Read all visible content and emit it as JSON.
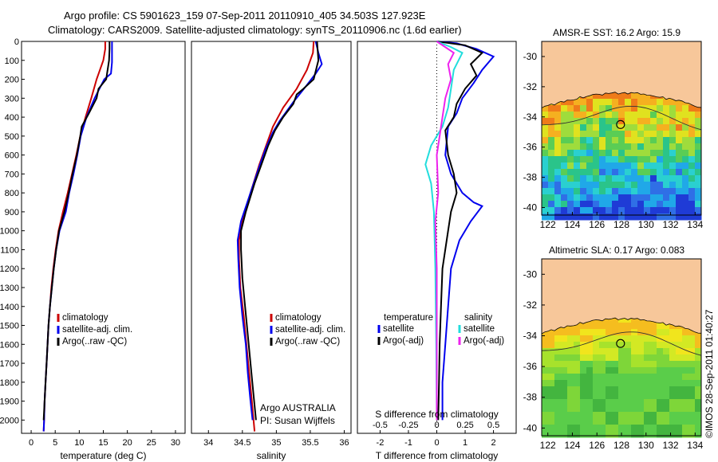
{
  "header": {
    "title_line1": "Argo profile: CS 5901623_159 07-Sep-2011 20110910_405 34.503S 127.923E",
    "title_line2": "Climatology: CARS2009. Satellite-adjusted climatology: synTS_20110906.nc (1.6d earlier)"
  },
  "annotations": {
    "argo_text": "Argo AUSTRALIA",
    "pi_text": "PI: Susan Wijffels",
    "copyright": "©IMOS 28-Sep-2011 01:40:27"
  },
  "colors": {
    "climatology": "#cc0000",
    "satellite": "#0000ee",
    "argo": "#000000",
    "sal_satellite": "#22dddd",
    "sal_argo": "#ee22ee",
    "land": "#f7c79a",
    "contour": "#333333"
  },
  "chart_data": [
    {
      "type": "line",
      "name": "temperature-profile",
      "xlabel": "temperature (deg C)",
      "ylabel": "",
      "xlim": [
        -2,
        32
      ],
      "ylim": [
        2070,
        0
      ],
      "xticks": [
        0,
        5,
        10,
        15,
        20,
        25,
        30
      ],
      "yticks": [
        0,
        100,
        200,
        300,
        400,
        500,
        600,
        700,
        800,
        900,
        1000,
        1100,
        1200,
        1300,
        1400,
        1500,
        1600,
        1700,
        1800,
        1900,
        2000
      ],
      "legend": [
        "climatology",
        "satellite-adj. clim.",
        "Argo(..raw -QC)"
      ],
      "series": [
        {
          "name": "climatology",
          "points": [
            [
              15.4,
              0
            ],
            [
              15.4,
              40
            ],
            [
              15.0,
              100
            ],
            [
              14.3,
              150
            ],
            [
              13.6,
              200
            ],
            [
              12.5,
              300
            ],
            [
              11.3,
              400
            ],
            [
              10.2,
              500
            ],
            [
              9.4,
              600
            ],
            [
              8.5,
              700
            ],
            [
              7.6,
              800
            ],
            [
              6.6,
              900
            ],
            [
              5.7,
              1000
            ],
            [
              5.1,
              1100
            ],
            [
              4.6,
              1200
            ],
            [
              4.2,
              1300
            ],
            [
              3.9,
              1400
            ],
            [
              3.6,
              1500
            ],
            [
              3.4,
              1600
            ],
            [
              3.2,
              1700
            ],
            [
              3.0,
              1800
            ],
            [
              2.8,
              1900
            ],
            [
              2.7,
              2000
            ],
            [
              2.6,
              2060
            ]
          ]
        },
        {
          "name": "satellite-adj. clim.",
          "points": [
            [
              16.8,
              0
            ],
            [
              16.8,
              60
            ],
            [
              16.8,
              110
            ],
            [
              16.6,
              170
            ],
            [
              15.2,
              200
            ],
            [
              13.2,
              300
            ],
            [
              11.5,
              400
            ],
            [
              10.3,
              500
            ],
            [
              9.6,
              600
            ],
            [
              8.8,
              700
            ],
            [
              7.9,
              800
            ],
            [
              7.2,
              900
            ],
            [
              5.9,
              1000
            ],
            [
              5.2,
              1100
            ],
            [
              4.7,
              1200
            ],
            [
              4.3,
              1300
            ],
            [
              3.9,
              1400
            ],
            [
              3.6,
              1500
            ],
            [
              3.4,
              1600
            ],
            [
              3.2,
              1700
            ],
            [
              3.0,
              1800
            ],
            [
              2.8,
              1900
            ],
            [
              2.7,
              2000
            ],
            [
              2.6,
              2060
            ]
          ]
        },
        {
          "name": "Argo(..raw -QC)",
          "points": [
            [
              16.3,
              0
            ],
            [
              16.3,
              40
            ],
            [
              16.2,
              100
            ],
            [
              15.6,
              200
            ],
            [
              14.0,
              250
            ],
            [
              13.6,
              300
            ],
            [
              12.0,
              380
            ],
            [
              10.5,
              450
            ],
            [
              10.2,
              500
            ],
            [
              9.5,
              600
            ],
            [
              8.6,
              700
            ],
            [
              7.8,
              800
            ],
            [
              6.9,
              900
            ],
            [
              5.8,
              1000
            ],
            [
              5.2,
              1100
            ],
            [
              4.7,
              1200
            ],
            [
              4.3,
              1300
            ],
            [
              3.9,
              1400
            ],
            [
              3.6,
              1500
            ],
            [
              3.4,
              1600
            ],
            [
              3.2,
              1700
            ],
            [
              3.0,
              1800
            ],
            [
              2.8,
              1900
            ],
            [
              2.6,
              2000
            ]
          ]
        }
      ]
    },
    {
      "type": "line",
      "name": "salinity-profile",
      "xlabel": "salinity",
      "ylabel": "",
      "xlim": [
        33.75,
        36.1
      ],
      "ylim": [
        2070,
        0
      ],
      "xticks": [
        34,
        34.5,
        35,
        35.5,
        36
      ],
      "yticks": [
        0,
        100,
        200,
        300,
        400,
        500,
        600,
        700,
        800,
        900,
        1000,
        1100,
        1200,
        1300,
        1400,
        1500,
        1600,
        1700,
        1800,
        1900,
        2000
      ],
      "legend": [
        "climatology",
        "satellite-adj. clim.",
        "Argo(..raw -QC)"
      ],
      "series": [
        {
          "name": "climatology",
          "points": [
            [
              35.55,
              0
            ],
            [
              35.54,
              60
            ],
            [
              35.45,
              150
            ],
            [
              35.3,
              250
            ],
            [
              35.1,
              350
            ],
            [
              34.95,
              450
            ],
            [
              34.85,
              550
            ],
            [
              34.75,
              650
            ],
            [
              34.62,
              800
            ],
            [
              34.5,
              950
            ],
            [
              34.45,
              1050
            ],
            [
              34.45,
              1150
            ],
            [
              34.47,
              1300
            ],
            [
              34.52,
              1450
            ],
            [
              34.56,
              1600
            ],
            [
              34.6,
              1750
            ],
            [
              34.64,
              1900
            ],
            [
              34.68,
              2060
            ]
          ]
        },
        {
          "name": "satellite-adj. clim.",
          "points": [
            [
              35.58,
              0
            ],
            [
              35.62,
              60
            ],
            [
              35.67,
              120
            ],
            [
              35.58,
              170
            ],
            [
              35.45,
              230
            ],
            [
              35.25,
              320
            ],
            [
              35.05,
              420
            ],
            [
              34.95,
              480
            ],
            [
              34.85,
              560
            ],
            [
              34.75,
              660
            ],
            [
              34.62,
              800
            ],
            [
              34.48,
              950
            ],
            [
              34.43,
              1050
            ],
            [
              34.44,
              1150
            ],
            [
              34.46,
              1300
            ],
            [
              34.5,
              1450
            ],
            [
              34.55,
              1600
            ],
            [
              34.58,
              1750
            ],
            [
              34.62,
              1900
            ],
            [
              34.65,
              2000
            ]
          ]
        },
        {
          "name": "Argo(..raw -QC)",
          "points": [
            [
              35.6,
              0
            ],
            [
              35.62,
              100
            ],
            [
              35.55,
              200
            ],
            [
              35.4,
              250
            ],
            [
              35.3,
              280
            ],
            [
              35.25,
              330
            ],
            [
              35.1,
              400
            ],
            [
              34.98,
              470
            ],
            [
              34.88,
              550
            ],
            [
              34.78,
              650
            ],
            [
              34.68,
              750
            ],
            [
              34.55,
              900
            ],
            [
              34.48,
              1000
            ],
            [
              34.48,
              1100
            ],
            [
              34.5,
              1250
            ],
            [
              34.54,
              1400
            ],
            [
              34.58,
              1550
            ],
            [
              34.62,
              1700
            ],
            [
              34.66,
              1850
            ],
            [
              34.7,
              2000
            ]
          ]
        }
      ]
    },
    {
      "type": "line",
      "name": "difference-profile",
      "xlabel": "T difference from climatology",
      "xlabel2": "S difference from climatology",
      "xlim": [
        -2.8,
        2.8
      ],
      "ylim": [
        2070,
        0
      ],
      "xticks": [
        -2,
        -1,
        0,
        1,
        2
      ],
      "xticks2": [
        -0.5,
        -0.25,
        0,
        0.25,
        0.5
      ],
      "legend_temperature_title": "temperature",
      "legend_salinity_title": "salinity",
      "legend_temperature": [
        "satellite",
        "Argo(-adj)"
      ],
      "legend_salinity": [
        "satellite",
        "Argo(-adj)"
      ],
      "series": [
        {
          "name": "T satellite",
          "points": [
            [
              0.0,
              0
            ],
            [
              0.7,
              10
            ],
            [
              1.4,
              40
            ],
            [
              2.0,
              80
            ],
            [
              1.6,
              150
            ],
            [
              1.3,
              220
            ],
            [
              0.9,
              300
            ],
            [
              0.7,
              380
            ],
            [
              0.4,
              450
            ],
            [
              0.3,
              600
            ],
            [
              0.5,
              700
            ],
            [
              0.9,
              800
            ],
            [
              1.3,
              850
            ],
            [
              1.6,
              870
            ],
            [
              1.2,
              950
            ],
            [
              0.8,
              1050
            ],
            [
              0.5,
              1200
            ],
            [
              0.4,
              1400
            ],
            [
              0.3,
              1600
            ],
            [
              0.2,
              1800
            ],
            [
              0.2,
              2000
            ]
          ]
        },
        {
          "name": "T Argo(-adj)",
          "points": [
            [
              0.0,
              0
            ],
            [
              1.0,
              20
            ],
            [
              1.6,
              60
            ],
            [
              1.2,
              120
            ],
            [
              1.4,
              180
            ],
            [
              1.0,
              250
            ],
            [
              0.7,
              330
            ],
            [
              0.6,
              400
            ],
            [
              0.3,
              470
            ],
            [
              0.4,
              600
            ],
            [
              0.6,
              700
            ],
            [
              0.7,
              800
            ],
            [
              0.5,
              900
            ],
            [
              0.4,
              1000
            ],
            [
              0.2,
              1200
            ],
            [
              0.15,
              1400
            ],
            [
              0.1,
              1600
            ],
            [
              0.08,
              1800
            ],
            [
              0.05,
              2000
            ]
          ]
        },
        {
          "name": "S satellite",
          "points": [
            [
              0.0,
              0
            ],
            [
              0.5,
              30
            ],
            [
              0.9,
              60
            ],
            [
              0.6,
              150
            ],
            [
              0.5,
              250
            ],
            [
              0.4,
              350
            ],
            [
              0.2,
              450
            ],
            [
              -0.2,
              550
            ],
            [
              -0.4,
              650
            ],
            [
              -0.2,
              750
            ],
            [
              -0.1,
              900
            ],
            [
              -0.05,
              1200
            ],
            [
              -0.02,
              1600
            ],
            [
              0.0,
              2000
            ]
          ]
        },
        {
          "name": "S Argo(-adj)",
          "points": [
            [
              0.0,
              0
            ],
            [
              0.6,
              60
            ],
            [
              0.4,
              120
            ],
            [
              0.5,
              200
            ],
            [
              0.3,
              300
            ],
            [
              0.2,
              400
            ],
            [
              0.1,
              500
            ],
            [
              0.0,
              600
            ],
            [
              0.05,
              800
            ],
            [
              -0.05,
              950
            ],
            [
              0.0,
              1200
            ],
            [
              0.0,
              1600
            ],
            [
              0.0,
              2000
            ]
          ]
        }
      ]
    },
    {
      "type": "heatmap",
      "name": "sst-map",
      "title": "AMSR-E SST: 16.2 Argo: 15.9",
      "xlim": [
        121.5,
        134.5
      ],
      "ylim": [
        -40.5,
        -29
      ],
      "xticks": [
        122,
        124,
        126,
        128,
        130,
        132,
        134
      ],
      "yticks": [
        -30,
        -32,
        -34,
        -36,
        -38,
        -40
      ],
      "float_lon": 127.923,
      "float_lat": -34.503
    },
    {
      "type": "heatmap",
      "name": "sla-map",
      "title": "Altimetric SLA: 0.17 Argo: 0.083",
      "xlim": [
        121.5,
        134.5
      ],
      "ylim": [
        -40.5,
        -29
      ],
      "xticks": [
        122,
        124,
        126,
        128,
        130,
        132,
        134
      ],
      "yticks": [
        -30,
        -32,
        -34,
        -36,
        -38,
        -40
      ],
      "float_lon": 127.923,
      "float_lat": -34.503
    }
  ]
}
